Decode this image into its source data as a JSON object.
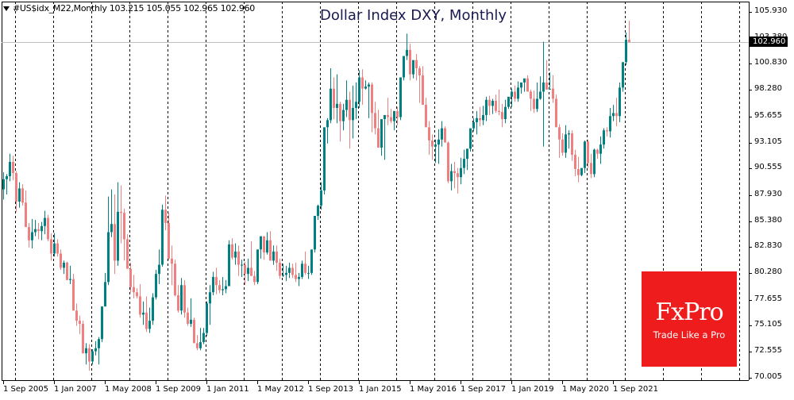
{
  "header": {
    "symbol_info": "#US$idx_M22,Monthly  103.215 105.055 102.965 102.960",
    "title": "Dollar Index DXY, Monthly"
  },
  "price_axis": {
    "labels": [
      "105.930",
      "103.380",
      "100.830",
      "98.280",
      "95.655",
      "93.105",
      "90.555",
      "87.930",
      "85.380",
      "82.830",
      "80.280",
      "77.655",
      "75.105",
      "72.555",
      "70.005"
    ],
    "current_price": "102.960"
  },
  "time_axis": {
    "labels": [
      "1 Sep 2005",
      "1 Jan 2007",
      "1 May 2008",
      "1 Sep 2009",
      "1 Jan 2011",
      "1 May 2012",
      "1 Sep 2013",
      "1 Jan 2015",
      "1 May 2016",
      "1 Sep 2017",
      "1 Jan 2019",
      "1 May 2020",
      "1 Sep 2021"
    ]
  },
  "logo": {
    "name": "FxPro",
    "tagline": "Trade Like a Pro",
    "color": "#ee1c1c"
  },
  "colors": {
    "bull": "#008080",
    "bear": "#f08080",
    "grid": "#000000",
    "current_line": "#c0c0c0"
  },
  "chart_data": {
    "type": "candlestick",
    "title": "Dollar Index DXY, Monthly",
    "symbol": "#US$idx_M22",
    "timeframe": "Monthly",
    "last_bar": {
      "open": 103.215,
      "high": 105.055,
      "low": 102.965,
      "close": 102.96
    },
    "ylim": [
      70.005,
      105.93
    ],
    "y_ticks": [
      105.93,
      103.38,
      100.83,
      98.28,
      95.655,
      93.105,
      90.555,
      87.93,
      85.38,
      82.83,
      80.28,
      77.655,
      75.105,
      72.555,
      70.005
    ],
    "x_tick_labels": [
      "1 Sep 2005",
      "1 Jan 2007",
      "1 May 2008",
      "1 Sep 2009",
      "1 Jan 2011",
      "1 May 2012",
      "1 Sep 2013",
      "1 Jan 2015",
      "1 May 2016",
      "1 Sep 2017",
      "1 Jan 2019",
      "1 May 2020",
      "1 Sep 2021"
    ],
    "start": "Sep 2005",
    "ohlc": [
      [
        88.5,
        90.2,
        87.5,
        89.5
      ],
      [
        89.5,
        90.0,
        88.0,
        89.8
      ],
      [
        89.8,
        92.0,
        89.3,
        91.2
      ],
      [
        91.2,
        91.8,
        89.4,
        90.1
      ],
      [
        90.1,
        90.3,
        86.3,
        87.3
      ],
      [
        87.3,
        89.2,
        86.7,
        88.6
      ],
      [
        88.6,
        89.0,
        86.9,
        87.2
      ],
      [
        87.2,
        88.4,
        84.8,
        84.8
      ],
      [
        84.8,
        85.2,
        82.8,
        83.5
      ],
      [
        83.5,
        85.6,
        82.7,
        84.3
      ],
      [
        84.3,
        85.5,
        83.9,
        84.6
      ],
      [
        84.6,
        85.2,
        83.6,
        84.4
      ],
      [
        84.4,
        85.3,
        83.5,
        84.9
      ],
      [
        84.9,
        86.4,
        84.1,
        85.7
      ],
      [
        85.7,
        86.0,
        83.4,
        83.6
      ],
      [
        83.6,
        84.2,
        81.5,
        82.2
      ],
      [
        82.2,
        84.2,
        81.9,
        83.2
      ],
      [
        83.2,
        83.6,
        81.9,
        82.2
      ],
      [
        82.2,
        82.6,
        80.6,
        80.8
      ],
      [
        80.8,
        81.5,
        80.2,
        81.3
      ],
      [
        81.3,
        81.4,
        79.6,
        79.6
      ],
      [
        79.6,
        81.0,
        79.2,
        79.7
      ],
      [
        79.7,
        80.2,
        76.6,
        76.6
      ],
      [
        76.6,
        77.3,
        75.1,
        75.6
      ],
      [
        75.6,
        76.1,
        74.3,
        75.3
      ],
      [
        75.3,
        75.6,
        72.4,
        72.4
      ],
      [
        72.4,
        73.4,
        71.3,
        72.9
      ],
      [
        72.9,
        73.3,
        70.7,
        71.6
      ],
      [
        71.6,
        72.8,
        71.3,
        72.6
      ],
      [
        72.6,
        73.6,
        72.2,
        72.9
      ],
      [
        72.9,
        74.0,
        71.3,
        73.8
      ],
      [
        73.8,
        77.0,
        73.5,
        77.0
      ],
      [
        77.0,
        80.3,
        77.0,
        79.4
      ],
      [
        79.4,
        87.8,
        79.1,
        84.3
      ],
      [
        84.3,
        88.5,
        83.8,
        85.1
      ],
      [
        85.1,
        88.0,
        80.2,
        81.5
      ],
      [
        81.5,
        89.2,
        81.0,
        86.3
      ],
      [
        86.3,
        88.9,
        83.2,
        86.2
      ],
      [
        86.2,
        86.6,
        81.5,
        83.6
      ],
      [
        83.6,
        84.1,
        80.8,
        80.7
      ],
      [
        80.7,
        81.3,
        78.4,
        78.9
      ],
      [
        78.9,
        80.1,
        77.8,
        78.4
      ],
      [
        78.4,
        78.8,
        77.8,
        78.0
      ],
      [
        78.0,
        79.2,
        75.9,
        76.2
      ],
      [
        76.2,
        77.5,
        75.2,
        76.4
      ],
      [
        76.4,
        78.0,
        74.5,
        74.8
      ],
      [
        74.8,
        76.9,
        74.4,
        75.6
      ],
      [
        75.6,
        78.3,
        75.2,
        77.9
      ],
      [
        77.9,
        80.6,
        77.7,
        80.2
      ],
      [
        80.2,
        82.6,
        79.2,
        81.1
      ],
      [
        81.1,
        87.0,
        80.9,
        86.5
      ],
      [
        86.5,
        87.9,
        84.5,
        85.2
      ],
      [
        85.2,
        86.2,
        81.6,
        81.7
      ],
      [
        81.7,
        83.0,
        79.1,
        81.2
      ],
      [
        81.2,
        81.6,
        78.0,
        78.1
      ],
      [
        78.1,
        79.1,
        76.4,
        76.6
      ],
      [
        76.6,
        79.8,
        76.2,
        79.1
      ],
      [
        79.1,
        79.6,
        75.9,
        76.4
      ],
      [
        76.4,
        76.9,
        75.1,
        75.3
      ],
      [
        75.3,
        77.8,
        75.0,
        75.7
      ],
      [
        75.7,
        75.9,
        73.4,
        73.4
      ],
      [
        73.4,
        74.2,
        72.7,
        72.9
      ],
      [
        72.9,
        74.9,
        72.7,
        73.5
      ],
      [
        73.5,
        74.9,
        73.3,
        74.4
      ],
      [
        74.4,
        77.5,
        74.1,
        77.3
      ],
      [
        77.3,
        79.1,
        75.2,
        78.4
      ],
      [
        78.4,
        80.4,
        78.1,
        79.9
      ],
      [
        79.9,
        80.8,
        78.2,
        79.1
      ],
      [
        79.1,
        79.6,
        78.3,
        78.6
      ],
      [
        78.6,
        79.9,
        78.1,
        78.7
      ],
      [
        78.7,
        79.6,
        78.3,
        79.0
      ],
      [
        79.0,
        83.5,
        79.0,
        83.1
      ],
      [
        83.1,
        83.7,
        81.6,
        81.8
      ],
      [
        81.8,
        83.2,
        81.1,
        82.4
      ],
      [
        82.4,
        83.0,
        80.0,
        81.1
      ],
      [
        81.1,
        81.6,
        79.9,
        81.1
      ],
      [
        81.1,
        81.4,
        79.1,
        80.2
      ],
      [
        80.2,
        81.7,
        79.5,
        80.8
      ],
      [
        80.8,
        83.4,
        80.2,
        80.0
      ],
      [
        80.0,
        80.5,
        79.1,
        79.4
      ],
      [
        79.4,
        82.6,
        79.2,
        82.6
      ],
      [
        82.6,
        83.4,
        81.7,
        83.9
      ],
      [
        83.9,
        82.5,
        81.6,
        82.3
      ],
      [
        82.3,
        84.3,
        82.1,
        83.5
      ],
      [
        83.5,
        84.4,
        81.5,
        81.5
      ],
      [
        81.5,
        83.0,
        81.1,
        82.4
      ],
      [
        82.4,
        83.0,
        80.5,
        81.3
      ],
      [
        81.3,
        81.7,
        79.7,
        80.0
      ],
      [
        80.0,
        81.2,
        79.9,
        80.1
      ],
      [
        80.1,
        81.0,
        79.5,
        80.3
      ],
      [
        80.3,
        81.3,
        79.8,
        80.8
      ],
      [
        80.8,
        81.2,
        79.8,
        80.1
      ],
      [
        80.1,
        81.3,
        79.4,
        79.7
      ],
      [
        79.7,
        80.3,
        79.0,
        79.9
      ],
      [
        79.9,
        81.5,
        79.7,
        81.2
      ],
      [
        81.2,
        82.4,
        80.1,
        80.3
      ],
      [
        80.3,
        81.0,
        79.7,
        80.3
      ],
      [
        80.3,
        82.6,
        80.1,
        82.6
      ],
      [
        82.6,
        84.9,
        82.3,
        85.9
      ],
      [
        85.9,
        87.0,
        85.5,
        86.9
      ],
      [
        86.9,
        89.2,
        86.5,
        88.4
      ],
      [
        88.4,
        94.4,
        88.0,
        94.6
      ],
      [
        94.6,
        95.5,
        93.0,
        95.3
      ],
      [
        95.3,
        100.4,
        95.0,
        98.4
      ],
      [
        98.4,
        99.5,
        95.4,
        96.5
      ],
      [
        96.5,
        99.8,
        95.0,
        96.9
      ],
      [
        96.9,
        97.1,
        93.2,
        95.2
      ],
      [
        95.2,
        96.9,
        94.3,
        96.3
      ],
      [
        96.3,
        99.2,
        95.6,
        97.3
      ],
      [
        97.3,
        98.1,
        92.5,
        95.3
      ],
      [
        95.3,
        98.7,
        93.5,
        96.5
      ],
      [
        96.5,
        99.0,
        95.4,
        97.1
      ],
      [
        97.1,
        100.2,
        96.5,
        99.5
      ],
      [
        99.5,
        100.3,
        96.8,
        98.4
      ],
      [
        98.4,
        99.2,
        98.3,
        98.6
      ],
      [
        98.6,
        99.0,
        95.5,
        98.8
      ],
      [
        98.8,
        99.0,
        94.1,
        96.0
      ],
      [
        96.0,
        97.1,
        93.9,
        94.5
      ],
      [
        94.5,
        96.3,
        93.2,
        92.6
      ],
      [
        92.6,
        93.5,
        91.8,
        95.4
      ],
      [
        95.4,
        95.5,
        91.4,
        95.8
      ],
      [
        95.8,
        97.5,
        94.8,
        95.6
      ],
      [
        95.6,
        96.4,
        95.0,
        95.2
      ],
      [
        95.2,
        96.0,
        94.3,
        96.2
      ],
      [
        96.2,
        96.6,
        94.8,
        95.6
      ],
      [
        95.6,
        97.6,
        95.3,
        99.5
      ],
      [
        99.5,
        101.1,
        99.2,
        101.6
      ],
      [
        101.6,
        103.8,
        101.2,
        102.2
      ],
      [
        102.2,
        102.8,
        99.2,
        99.8
      ],
      [
        99.8,
        101.1,
        99.4,
        101.2
      ],
      [
        101.2,
        101.8,
        99.2,
        100.4
      ],
      [
        100.4,
        100.6,
        97.0,
        99.7
      ],
      [
        99.7,
        100.6,
        97.2,
        96.8
      ],
      [
        96.8,
        97.5,
        94.9,
        94.6
      ],
      [
        94.6,
        95.2,
        91.9,
        93.3
      ],
      [
        93.3,
        93.9,
        91.4,
        92.7
      ],
      [
        92.7,
        93.4,
        91.1,
        92.9
      ],
      [
        92.9,
        94.4,
        91.0,
        93.4
      ],
      [
        93.4,
        95.2,
        92.7,
        94.5
      ],
      [
        94.5,
        94.7,
        93.1,
        93.1
      ],
      [
        93.1,
        93.2,
        89.1,
        89.3
      ],
      [
        89.3,
        91.0,
        88.4,
        90.3
      ],
      [
        90.3,
        91.2,
        88.6,
        90.1
      ],
      [
        90.1,
        90.6,
        88.1,
        89.7
      ],
      [
        89.7,
        91.6,
        89.0,
        90.6
      ],
      [
        90.6,
        92.4,
        90.0,
        91.5
      ],
      [
        91.5,
        92.4,
        90.4,
        92.5
      ],
      [
        92.5,
        94.4,
        92.2,
        94.5
      ],
      [
        94.5,
        95.5,
        94.2,
        95.1
      ],
      [
        95.1,
        96.2,
        93.9,
        95.5
      ],
      [
        95.5,
        96.6,
        94.7,
        95.3
      ],
      [
        95.3,
        96.7,
        94.8,
        95.8
      ],
      [
        95.8,
        97.6,
        95.2,
        97.3
      ],
      [
        97.3,
        97.7,
        95.8,
        96.7
      ],
      [
        96.7,
        97.4,
        95.9,
        97.2
      ],
      [
        97.2,
        97.8,
        96.0,
        96.2
      ],
      [
        96.2,
        98.3,
        95.8,
        96.1
      ],
      [
        96.1,
        96.9,
        94.6,
        95.4
      ],
      [
        95.4,
        97.3,
        95.0,
        96.6
      ],
      [
        96.6,
        97.5,
        96.4,
        97.6
      ],
      [
        97.6,
        98.4,
        96.6,
        98.1
      ],
      [
        98.1,
        98.7,
        97.1,
        97.4
      ],
      [
        97.4,
        99.1,
        97.1,
        98.5
      ],
      [
        98.5,
        98.9,
        97.9,
        99.0
      ],
      [
        99.0,
        99.3,
        98.1,
        99.4
      ],
      [
        99.4,
        99.7,
        98.4,
        98.1
      ],
      [
        98.1,
        98.3,
        96.2,
        97.4
      ],
      [
        97.4,
        98.2,
        96.0,
        96.4
      ],
      [
        96.4,
        99.0,
        96.1,
        97.4
      ],
      [
        97.4,
        99.6,
        97.3,
        98.1
      ],
      [
        98.1,
        103.0,
        92.7,
        99.0
      ],
      [
        99.0,
        101.2,
        98.4,
        98.3
      ],
      [
        98.3,
        100.0,
        98.5,
        98.4
      ],
      [
        98.4,
        99.7,
        97.0,
        97.4
      ],
      [
        97.4,
        97.8,
        95.7,
        94.6
      ],
      [
        94.6,
        94.9,
        91.6,
        93.4
      ],
      [
        93.4,
        94.0,
        91.8,
        92.1
      ],
      [
        92.1,
        94.8,
        91.6,
        93.9
      ],
      [
        93.9,
        94.3,
        92.5,
        94.0
      ],
      [
        94.0,
        94.3,
        91.3,
        91.9
      ],
      [
        91.9,
        92.4,
        89.8,
        90.5
      ],
      [
        90.5,
        91.7,
        89.2,
        89.9
      ],
      [
        89.9,
        90.4,
        89.8,
        90.6
      ],
      [
        90.6,
        93.3,
        90.1,
        93.2
      ],
      [
        93.2,
        93.4,
        90.6,
        91.1
      ],
      [
        91.1,
        92.0,
        89.6,
        90.0
      ],
      [
        90.0,
        92.5,
        89.7,
        92.4
      ],
      [
        92.4,
        92.5,
        91.5,
        92.0
      ],
      [
        92.0,
        93.7,
        91.0,
        92.9
      ],
      [
        92.9,
        94.5,
        92.5,
        94.3
      ],
      [
        94.3,
        94.6,
        93.7,
        94.2
      ],
      [
        94.2,
        96.5,
        93.6,
        95.7
      ],
      [
        95.7,
        96.8,
        95.2,
        96.0
      ],
      [
        96.0,
        97.5,
        94.7,
        95.7
      ],
      [
        95.7,
        99.0,
        95.1,
        98.5
      ],
      [
        98.5,
        100.0,
        98.1,
        101.0
      ],
      [
        101.0,
        103.9,
        100.7,
        103.2
      ],
      [
        103.2,
        105.055,
        102.965,
        102.96
      ]
    ]
  }
}
